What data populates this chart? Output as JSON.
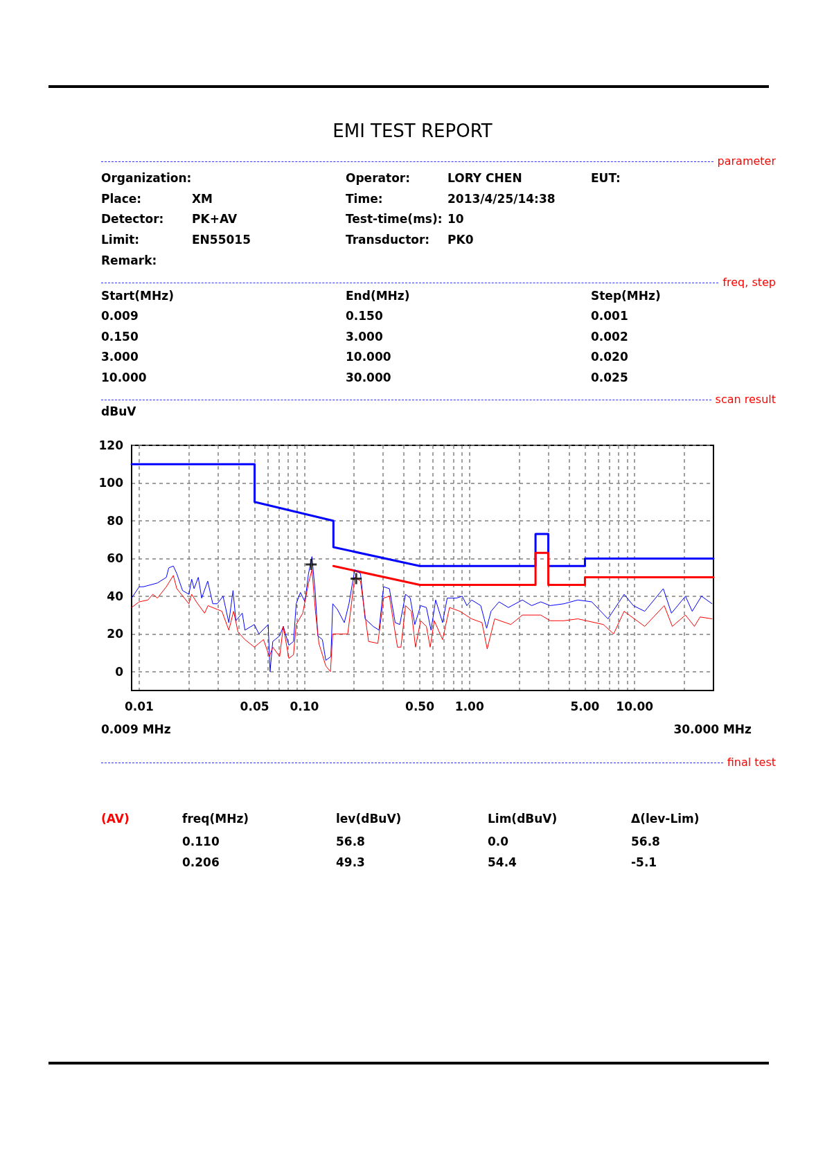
{
  "chart_data": {
    "type": "line",
    "title": "EMI TEST REPORT",
    "ylabel": "dBuV",
    "xlim": [
      0.009,
      30
    ],
    "ylim": [
      -10,
      120
    ],
    "log": "x",
    "grid": true,
    "marker": "none",
    "line_style": "solid",
    "xticks": [
      0.01,
      {
        "value": 0.02,
        "label": null
      },
      {
        "value": 0.03,
        "label": null
      },
      {
        "value": 0.04,
        "label": null
      },
      0.05,
      {
        "value": 0.06,
        "label": null
      },
      {
        "value": 0.07,
        "label": null
      },
      {
        "value": 0.08,
        "label": null
      },
      {
        "value": 0.09,
        "label": null
      },
      {
        "value": 0.1,
        "label": "0.10"
      },
      {
        "value": 0.2,
        "label": null
      },
      {
        "value": 0.3,
        "label": null
      },
      {
        "value": 0.4,
        "label": null
      },
      {
        "value": 0.5,
        "label": "0.50"
      },
      {
        "value": 0.6,
        "label": null
      },
      {
        "value": 0.7,
        "label": null
      },
      {
        "value": 0.8,
        "label": null
      },
      {
        "value": 0.9,
        "label": null
      },
      {
        "value": 1,
        "label": "1.00"
      },
      {
        "value": 2,
        "label": null
      },
      {
        "value": 3,
        "label": null
      },
      {
        "value": 4,
        "label": null
      },
      {
        "value": 5,
        "label": "5.00"
      },
      {
        "value": 6,
        "label": null
      },
      {
        "value": 7,
        "label": null
      },
      {
        "value": 8,
        "label": null
      },
      {
        "value": 9,
        "label": null
      },
      {
        "value": 10,
        "label": "10.00"
      },
      {
        "value": 20,
        "label": null
      }
    ],
    "yticks": [
      0,
      20,
      40,
      60,
      80,
      100,
      120
    ],
    "series": [
      {
        "color": "#0000ff",
        "x": [
          0.009,
          0.05,
          0.05,
          0.15,
          0.15,
          0.5,
          2.51,
          2.51,
          3,
          3,
          5,
          5,
          30
        ],
        "values": [
          110,
          110,
          90,
          80,
          66,
          56,
          56,
          73,
          73,
          56,
          56,
          60,
          60
        ]
      },
      {
        "color": "#ff0000",
        "x": [
          0.15,
          0.5,
          2.51,
          2.51,
          3,
          3,
          5,
          5,
          30
        ],
        "values": [
          56,
          46,
          46,
          63,
          63,
          46,
          46,
          50,
          50
        ]
      },
      {
        "color": "#0000ff",
        "x": [
          0.009,
          0.01,
          0.0106,
          0.0129,
          0.0146,
          0.0151,
          0.0161,
          0.0169,
          0.0183,
          0.02,
          0.0208,
          0.0215,
          0.0228,
          0.0239,
          0.026,
          0.0279,
          0.0297,
          0.0322,
          0.0349,
          0.037,
          0.0385,
          0.0421,
          0.0437,
          0.0498,
          0.0531,
          0.0604,
          0.062,
          0.0644,
          0.0709,
          0.0746,
          0.0806,
          0.086,
          0.0893,
          0.0947,
          0.1009,
          0.106,
          0.1112,
          0.1167,
          0.1206,
          0.1286,
          0.1349,
          0.1448,
          0.1486,
          0.1585,
          0.1746,
          0.1863,
          0.2018,
          0.2188,
          0.2333,
          0.2612,
          0.2831,
          0.302,
          0.3273,
          0.3548,
          0.3785,
          0.4101,
          0.4375,
          0.4667,
          0.506,
          0.548,
          0.585,
          0.624,
          0.687,
          0.733,
          0.782,
          0.834,
          0.904,
          0.964,
          1.03,
          1.17,
          1.27,
          1.35,
          1.51,
          1.72,
          2.09,
          2.38,
          2.7,
          3.08,
          3.73,
          4.53,
          5.5,
          6.89,
          8.63,
          9.82,
          11.5,
          14.9,
          16.7,
          20.3,
          22.3,
          25.4,
          29.4
        ],
        "values": [
          39,
          45,
          45,
          47,
          50,
          55,
          56,
          52,
          43,
          41,
          49,
          44,
          50,
          39,
          48,
          36,
          36,
          40,
          26,
          43,
          27,
          31,
          22,
          25,
          20,
          25,
          0,
          16,
          19,
          24,
          14,
          16,
          36,
          42,
          37,
          52,
          61,
          41,
          19,
          17,
          6,
          8,
          36,
          33,
          26,
          36,
          54,
          52,
          28,
          24,
          22,
          45,
          44,
          26,
          25,
          41,
          39,
          25,
          35,
          34,
          22,
          38,
          26,
          39,
          39,
          39,
          40,
          35,
          38,
          35,
          23,
          32,
          37,
          34,
          38,
          35,
          37,
          35,
          36,
          38,
          37,
          28,
          41,
          35,
          32,
          44,
          31,
          40,
          32,
          40,
          36
        ]
      },
      {
        "color": "#ff0000",
        "x": [
          0.009,
          0.01,
          0.0113,
          0.0121,
          0.0129,
          0.0146,
          0.0161,
          0.0169,
          0.02,
          0.0208,
          0.0222,
          0.0249,
          0.0261,
          0.0297,
          0.0317,
          0.0349,
          0.0373,
          0.0397,
          0.0437,
          0.0498,
          0.0566,
          0.0614,
          0.0644,
          0.0709,
          0.0746,
          0.0806,
          0.086,
          0.0893,
          0.0978,
          0.106,
          0.1112,
          0.1167,
          0.1225,
          0.1349,
          0.1439,
          0.1486,
          0.1832,
          0.2018,
          0.2188,
          0.2448,
          0.2786,
          0.302,
          0.3273,
          0.3664,
          0.3846,
          0.4101,
          0.4446,
          0.471,
          0.506,
          0.548,
          0.578,
          0.612,
          0.687,
          0.757,
          0.875,
          1.03,
          1.19,
          1.28,
          1.42,
          1.78,
          2.09,
          2.7,
          3.08,
          3.73,
          4.53,
          6.46,
          7.46,
          8.63,
          11.5,
          15.1,
          16.9,
          20.3,
          23,
          24.9,
          29.4
        ],
        "values": [
          34,
          37,
          38,
          41,
          39,
          45,
          51,
          44,
          36,
          41,
          37,
          31,
          35,
          33,
          32,
          22,
          32,
          21,
          17,
          13,
          17,
          8,
          13,
          8,
          24,
          7,
          9,
          25,
          31,
          47,
          54,
          32,
          15,
          3,
          0,
          20,
          20,
          50,
          48,
          16,
          15,
          39,
          40,
          13,
          13,
          35,
          32,
          13,
          27,
          24,
          13,
          27,
          17,
          34,
          32,
          28,
          26,
          12,
          28,
          25,
          30,
          30,
          27,
          27,
          28,
          25,
          20,
          32,
          24,
          35,
          24,
          30,
          24,
          29,
          28
        ]
      },
      {
        "type": "scatter",
        "marker": "cross",
        "color": "#000000",
        "x": [
          0.11,
          0.206
        ],
        "values": [
          56.8,
          49.3
        ]
      }
    ],
    "annotations": [
      "parameter",
      "Organization:",
      "Operator:",
      "LORY CHEN",
      "EUT:",
      "Place:",
      "XM",
      "Time:",
      "2013/4/25/14:38",
      "Detector:",
      "PK+AV",
      "Test-time(ms):",
      "10",
      "Limit:",
      "EN55015",
      "Transductor:",
      "PK0",
      "Remark:",
      "freq, step",
      "Start(MHz)",
      "End(MHz)",
      "Step(MHz)",
      "0.009",
      "0.150",
      "0.001",
      "0.150",
      "3.000",
      "0.002",
      "3.000",
      "10.000",
      "0.020",
      "10.000",
      "30.000",
      "0.025",
      "scan result",
      "0.009 MHz",
      "30.000 MHz",
      "final test",
      "(AV)",
      "freq(MHz)",
      "lev(dBuV)",
      "Lim(dBuV)",
      "Δ(lev-Lim)",
      "0.110",
      "56.8",
      "0.0",
      "56.8",
      "0.206",
      "49.3",
      "54.4",
      "-5.1"
    ]
  }
}
